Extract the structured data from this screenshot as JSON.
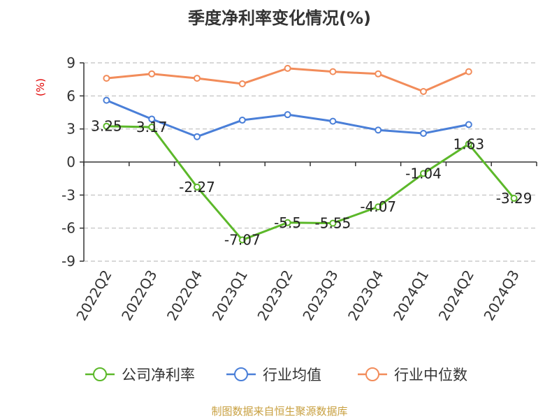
{
  "chart_data": {
    "type": "line",
    "title": "季度净利率变化情况(%)",
    "ylabel": "(%)",
    "categories": [
      "2022Q2",
      "2022Q3",
      "2022Q4",
      "2023Q1",
      "2023Q2",
      "2023Q3",
      "2023Q4",
      "2024Q1",
      "2024Q2",
      "2024Q3"
    ],
    "yticks": [
      9,
      6,
      3,
      0,
      -3,
      -6,
      -9
    ],
    "ylim": [
      -9,
      9
    ],
    "grid": true,
    "legend_position": "bottom",
    "series": [
      {
        "name": "公司净利率",
        "color": "#5cb82a",
        "values": [
          3.25,
          3.17,
          -2.27,
          -7.07,
          -5.5,
          -5.55,
          -4.07,
          -1.04,
          1.63,
          -3.29
        ],
        "labels": [
          "3.25",
          "3.17",
          "-2.27",
          "-7.07",
          "-5.5",
          "-5.55",
          "-4.07",
          "-1.04",
          "1.63",
          "-3.29"
        ]
      },
      {
        "name": "行业均值",
        "color": "#4a7fd8",
        "values": [
          5.6,
          3.9,
          2.3,
          3.8,
          4.3,
          3.7,
          2.9,
          2.6,
          3.4,
          null
        ]
      },
      {
        "name": "行业中位数",
        "color": "#f28c5a",
        "values": [
          7.6,
          8.0,
          7.6,
          7.1,
          8.5,
          8.2,
          8.0,
          6.4,
          8.2,
          null
        ]
      }
    ],
    "source": "制图数据来自恒生聚源数据库"
  }
}
